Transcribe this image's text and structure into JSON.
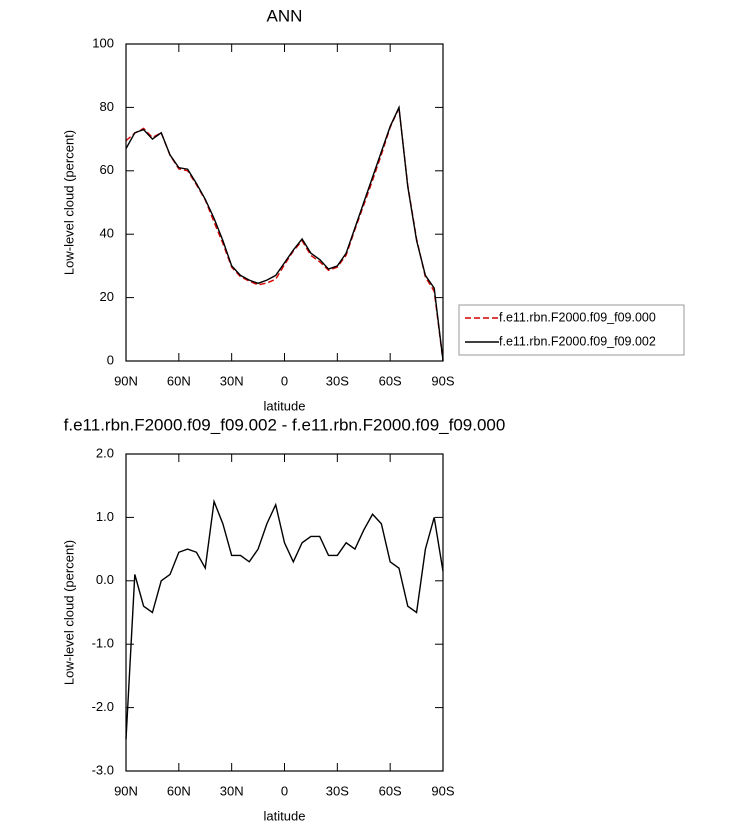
{
  "chart_data": [
    {
      "type": "line",
      "title": "ANN",
      "xlabel": "latitude",
      "ylabel": "Low-level cloud (percent)",
      "x": [
        90,
        85,
        80,
        75,
        70,
        65,
        60,
        55,
        50,
        45,
        40,
        35,
        30,
        25,
        20,
        15,
        10,
        5,
        0,
        -5,
        -10,
        -15,
        -20,
        -25,
        -30,
        -35,
        -40,
        -45,
        -50,
        -55,
        -60,
        -65,
        -70,
        -75,
        -80,
        -85,
        -90
      ],
      "xlim": [
        90,
        -90
      ],
      "xticks": [
        {
          "value": 90,
          "label": "90N"
        },
        {
          "value": 60,
          "label": "60N"
        },
        {
          "value": 30,
          "label": "30N"
        },
        0,
        {
          "value": -30,
          "label": "30S"
        },
        {
          "value": -60,
          "label": "60S"
        },
        {
          "value": -90,
          "label": "90S"
        }
      ],
      "ylim": [
        0,
        100
      ],
      "yticks": [
        0,
        20,
        40,
        60,
        80,
        100
      ],
      "legend": "right",
      "series": [
        {
          "name": "f.e11.rbn.F2000.f09_f09.000",
          "color": "#d40000",
          "line_style": "dashed",
          "values": [
            69.5,
            71.9,
            73.4,
            70.5,
            72,
            64.9,
            60.6,
            60,
            55.6,
            50.8,
            43.8,
            37.1,
            29.6,
            26.6,
            25.2,
            24,
            24.6,
            25.8,
            30.4,
            34.7,
            37.9,
            33.3,
            31.3,
            28.6,
            29.6,
            33.4,
            41.5,
            49.2,
            57,
            65.1,
            73.7,
            79.8,
            55.4,
            38.5,
            26.5,
            22,
            0
          ]
        },
        {
          "name": "f.e11.rbn.F2000.f09_f09.002",
          "color": "#000000",
          "line_style": "solid",
          "values": [
            67,
            72,
            73,
            70,
            72,
            65,
            61,
            60.5,
            56,
            51,
            45,
            38,
            30,
            27,
            25.5,
            24.5,
            25.5,
            27,
            31,
            35,
            38.5,
            34,
            32,
            29,
            30,
            34,
            42,
            50,
            58,
            66,
            74,
            80,
            55,
            38,
            27,
            23,
            0.2
          ]
        }
      ]
    },
    {
      "type": "line",
      "title": "f.e11.rbn.F2000.f09_f09.002 - f.e11.rbn.F2000.f09_f09.000",
      "xlabel": "latitude",
      "ylabel": "Low-level cloud (percent)",
      "x": [
        90,
        85,
        80,
        75,
        70,
        65,
        60,
        55,
        50,
        45,
        40,
        35,
        30,
        25,
        20,
        15,
        10,
        5,
        0,
        -5,
        -10,
        -15,
        -20,
        -25,
        -30,
        -35,
        -40,
        -45,
        -50,
        -55,
        -60,
        -65,
        -70,
        -75,
        -80,
        -85,
        -90
      ],
      "xlim": [
        90,
        -90
      ],
      "xticks": [
        {
          "value": 90,
          "label": "90N"
        },
        {
          "value": 60,
          "label": "60N"
        },
        {
          "value": 30,
          "label": "30N"
        },
        0,
        {
          "value": -30,
          "label": "30S"
        },
        {
          "value": -60,
          "label": "60S"
        },
        {
          "value": -90,
          "label": "90S"
        }
      ],
      "ylim": [
        -3,
        2
      ],
      "yticks": [
        {
          "value": 2,
          "label": "2.0"
        },
        {
          "value": 1,
          "label": "1.0"
        },
        {
          "value": 0,
          "label": "0.0"
        },
        {
          "value": -1,
          "label": "-1.0"
        },
        {
          "value": -2,
          "label": "-2.0"
        },
        {
          "value": -3,
          "label": "-3.0"
        }
      ],
      "series": [
        {
          "color": "#000000",
          "line_style": "solid",
          "values": [
            -2.5,
            0.1,
            -0.4,
            -0.5,
            0.0,
            0.1,
            0.45,
            0.5,
            0.45,
            0.2,
            1.25,
            0.9,
            0.4,
            0.4,
            0.3,
            0.5,
            0.9,
            1.2,
            0.6,
            0.3,
            0.6,
            0.7,
            0.7,
            0.4,
            0.4,
            0.6,
            0.5,
            0.8,
            1.05,
            0.9,
            0.3,
            0.2,
            -0.4,
            -0.5,
            0.5,
            1.0,
            0.15
          ]
        }
      ]
    }
  ]
}
